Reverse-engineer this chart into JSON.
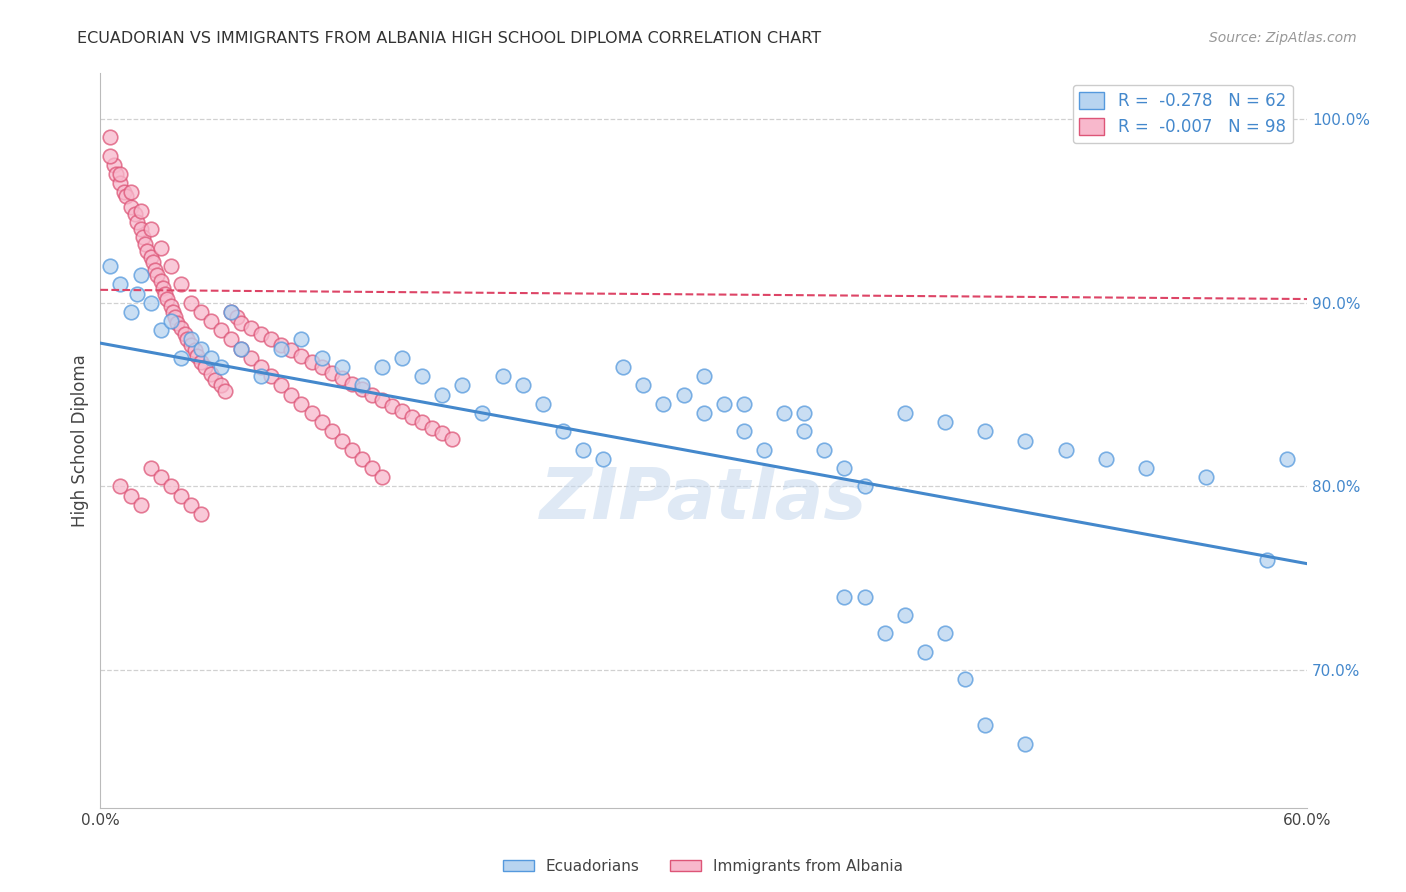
{
  "title": "ECUADORIAN VS IMMIGRANTS FROM ALBANIA HIGH SCHOOL DIPLOMA CORRELATION CHART",
  "source": "Source: ZipAtlas.com",
  "ylabel": "High School Diploma",
  "watermark": "ZIPatlas",
  "legend_r1": "-0.278",
  "legend_n1": "62",
  "legend_r2": "-0.007",
  "legend_n2": "98",
  "blue_fill": "#b8d4f0",
  "blue_edge": "#5599dd",
  "pink_fill": "#f8b8cc",
  "pink_edge": "#dd5577",
  "blue_line_color": "#4488cc",
  "pink_line_color": "#dd4466",
  "grid_color": "#cccccc",
  "background": "#ffffff",
  "xlim": [
    0.0,
    0.6
  ],
  "ylim": [
    0.625,
    1.025
  ],
  "yticks": [
    0.7,
    0.8,
    0.9,
    1.0
  ],
  "ytick_labels": [
    "70.0%",
    "80.0%",
    "90.0%",
    "100.0%"
  ],
  "xticks": [
    0.0,
    0.1,
    0.2,
    0.3,
    0.4,
    0.5,
    0.6
  ],
  "xtick_labels": [
    "0.0%",
    "",
    "",
    "",
    "",
    "",
    "60.0%"
  ],
  "blue_scatter_x": [
    0.005,
    0.01,
    0.015,
    0.018,
    0.02,
    0.025,
    0.03,
    0.035,
    0.04,
    0.045,
    0.05,
    0.055,
    0.06,
    0.065,
    0.07,
    0.08,
    0.09,
    0.1,
    0.11,
    0.12,
    0.13,
    0.14,
    0.15,
    0.16,
    0.17,
    0.18,
    0.19,
    0.2,
    0.21,
    0.22,
    0.23,
    0.24,
    0.25,
    0.26,
    0.27,
    0.28,
    0.29,
    0.3,
    0.31,
    0.32,
    0.33,
    0.34,
    0.35,
    0.36,
    0.37,
    0.38,
    0.4,
    0.42,
    0.44,
    0.46,
    0.48,
    0.5,
    0.52,
    0.55,
    0.58,
    0.59,
    0.3,
    0.32,
    0.35,
    0.38,
    0.4,
    0.42
  ],
  "blue_scatter_y": [
    0.92,
    0.91,
    0.895,
    0.905,
    0.915,
    0.9,
    0.885,
    0.89,
    0.87,
    0.88,
    0.875,
    0.87,
    0.865,
    0.895,
    0.875,
    0.86,
    0.875,
    0.88,
    0.87,
    0.865,
    0.855,
    0.865,
    0.87,
    0.86,
    0.85,
    0.855,
    0.84,
    0.86,
    0.855,
    0.845,
    0.83,
    0.82,
    0.815,
    0.865,
    0.855,
    0.845,
    0.85,
    0.84,
    0.845,
    0.83,
    0.82,
    0.84,
    0.83,
    0.82,
    0.81,
    0.8,
    0.84,
    0.835,
    0.83,
    0.825,
    0.82,
    0.815,
    0.81,
    0.805,
    0.76,
    0.815,
    0.86,
    0.845,
    0.84,
    0.74,
    0.73,
    0.72
  ],
  "blue_scatter_y2": [
    0.74,
    0.72,
    0.71,
    0.695,
    0.67,
    0.66
  ],
  "blue_scatter_x2": [
    0.37,
    0.39,
    0.41,
    0.43,
    0.44,
    0.46
  ],
  "pink_scatter_x": [
    0.005,
    0.007,
    0.008,
    0.01,
    0.012,
    0.013,
    0.015,
    0.017,
    0.018,
    0.02,
    0.021,
    0.022,
    0.023,
    0.025,
    0.026,
    0.027,
    0.028,
    0.03,
    0.031,
    0.032,
    0.033,
    0.035,
    0.036,
    0.037,
    0.038,
    0.04,
    0.042,
    0.043,
    0.045,
    0.047,
    0.048,
    0.05,
    0.052,
    0.055,
    0.057,
    0.06,
    0.062,
    0.065,
    0.068,
    0.07,
    0.075,
    0.08,
    0.085,
    0.09,
    0.095,
    0.1,
    0.105,
    0.11,
    0.115,
    0.12,
    0.125,
    0.13,
    0.135,
    0.14,
    0.145,
    0.15,
    0.155,
    0.16,
    0.165,
    0.17,
    0.175,
    0.005,
    0.01,
    0.015,
    0.02,
    0.025,
    0.03,
    0.035,
    0.04,
    0.045,
    0.05,
    0.055,
    0.06,
    0.065,
    0.07,
    0.075,
    0.08,
    0.085,
    0.09,
    0.095,
    0.1,
    0.105,
    0.11,
    0.115,
    0.12,
    0.125,
    0.13,
    0.135,
    0.14,
    0.01,
    0.015,
    0.02,
    0.025,
    0.03,
    0.035,
    0.04,
    0.045,
    0.05
  ],
  "pink_scatter_y": [
    0.99,
    0.975,
    0.97,
    0.965,
    0.96,
    0.958,
    0.952,
    0.948,
    0.944,
    0.94,
    0.936,
    0.932,
    0.928,
    0.925,
    0.922,
    0.918,
    0.915,
    0.912,
    0.908,
    0.905,
    0.902,
    0.898,
    0.895,
    0.892,
    0.889,
    0.886,
    0.883,
    0.88,
    0.877,
    0.874,
    0.871,
    0.868,
    0.865,
    0.861,
    0.858,
    0.855,
    0.852,
    0.895,
    0.892,
    0.889,
    0.886,
    0.883,
    0.88,
    0.877,
    0.874,
    0.871,
    0.868,
    0.865,
    0.862,
    0.859,
    0.856,
    0.853,
    0.85,
    0.847,
    0.844,
    0.841,
    0.838,
    0.835,
    0.832,
    0.829,
    0.826,
    0.98,
    0.97,
    0.96,
    0.95,
    0.94,
    0.93,
    0.92,
    0.91,
    0.9,
    0.895,
    0.89,
    0.885,
    0.88,
    0.875,
    0.87,
    0.865,
    0.86,
    0.855,
    0.85,
    0.845,
    0.84,
    0.835,
    0.83,
    0.825,
    0.82,
    0.815,
    0.81,
    0.805,
    0.8,
    0.795,
    0.79,
    0.81,
    0.805,
    0.8,
    0.795,
    0.79,
    0.785
  ],
  "blue_trend_x": [
    0.0,
    0.6
  ],
  "blue_trend_y": [
    0.878,
    0.758
  ],
  "pink_trend_x": [
    0.0,
    0.6
  ],
  "pink_trend_y": [
    0.907,
    0.902
  ]
}
